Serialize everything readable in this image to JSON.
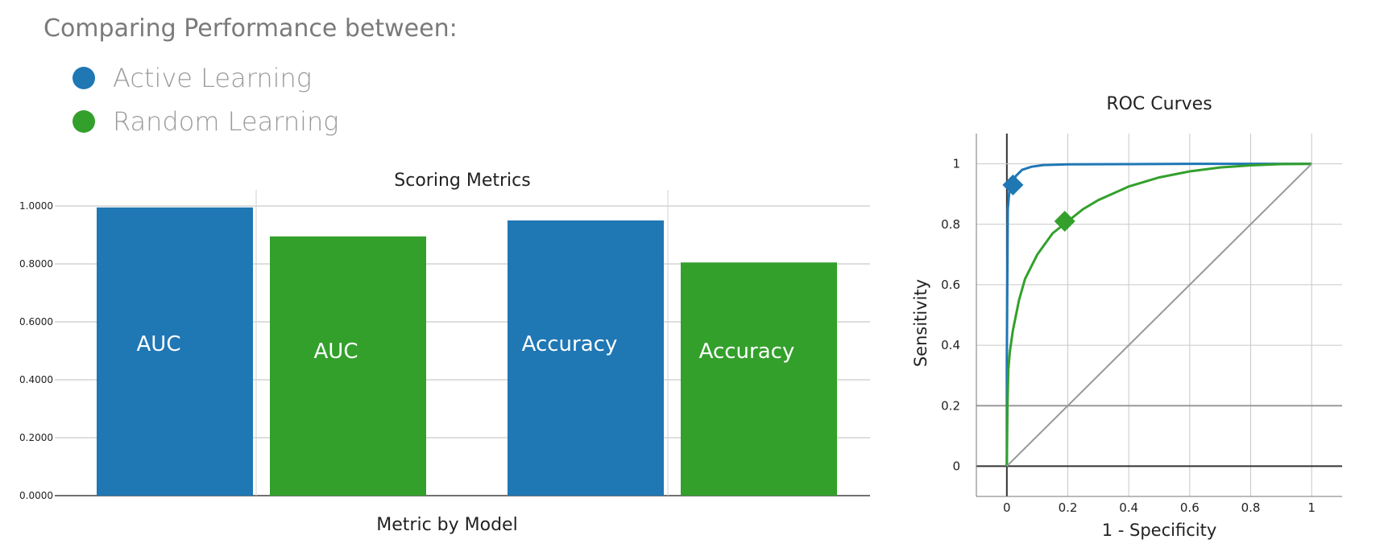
{
  "header": {
    "title": "Comparing Performance between:",
    "legend": [
      {
        "label": "Active Learning",
        "color": "#1f77b4"
      },
      {
        "label": "Random Learning",
        "color": "#33a02c"
      }
    ]
  },
  "chart_data": [
    {
      "type": "bar",
      "title": "Scoring Metrics",
      "xlabel": "Metric by Model",
      "ylabel": "",
      "ylim": [
        0,
        1
      ],
      "yticks": [
        "0.0000",
        "0.2000",
        "0.4000",
        "0.6000",
        "0.8000",
        "1.0000"
      ],
      "bars": [
        {
          "label": "AUC",
          "value": 0.995,
          "color": "#1f77b4"
        },
        {
          "label": "AUC",
          "value": 0.895,
          "color": "#33a02c"
        },
        {
          "label": "Accuracy",
          "value": 0.95,
          "color": "#1f77b4"
        },
        {
          "label": "Accuracy",
          "value": 0.805,
          "color": "#33a02c"
        }
      ],
      "grid": true
    },
    {
      "type": "line",
      "title": "ROC Curves",
      "xlabel": "1 - Specificity",
      "ylabel": "Sensitivity",
      "xlim": [
        -0.1,
        1.1
      ],
      "ylim": [
        -0.1,
        1.1
      ],
      "xticks": [
        "0",
        "0.2",
        "0.4",
        "0.6",
        "0.8",
        "1"
      ],
      "yticks": [
        "0",
        "0.2",
        "0.4",
        "0.6",
        "0.8",
        "1"
      ],
      "grid": true,
      "series": [
        {
          "color": "#1f77b4",
          "x": [
            0,
            0,
            0.003,
            0.008,
            0.015,
            0.03,
            0.05,
            0.08,
            0.12,
            0.2,
            0.4,
            0.6,
            0.8,
            1
          ],
          "y": [
            0,
            0.35,
            0.85,
            0.91,
            0.935,
            0.96,
            0.98,
            0.99,
            0.996,
            0.998,
            0.999,
            1,
            1,
            1
          ],
          "marker": {
            "x": 0.02,
            "y": 0.93
          }
        },
        {
          "color": "#33a02c",
          "x": [
            0,
            0.002,
            0.005,
            0.01,
            0.02,
            0.04,
            0.06,
            0.1,
            0.15,
            0.2,
            0.25,
            0.3,
            0.4,
            0.5,
            0.6,
            0.7,
            0.8,
            0.9,
            1
          ],
          "y": [
            0,
            0.2,
            0.32,
            0.38,
            0.45,
            0.55,
            0.62,
            0.7,
            0.77,
            0.81,
            0.85,
            0.88,
            0.925,
            0.955,
            0.975,
            0.988,
            0.995,
            0.999,
            1
          ],
          "marker": {
            "x": 0.19,
            "y": 0.81
          }
        },
        {
          "color": "#999999",
          "x": [
            0,
            1
          ],
          "y": [
            0,
            1
          ]
        }
      ]
    }
  ]
}
